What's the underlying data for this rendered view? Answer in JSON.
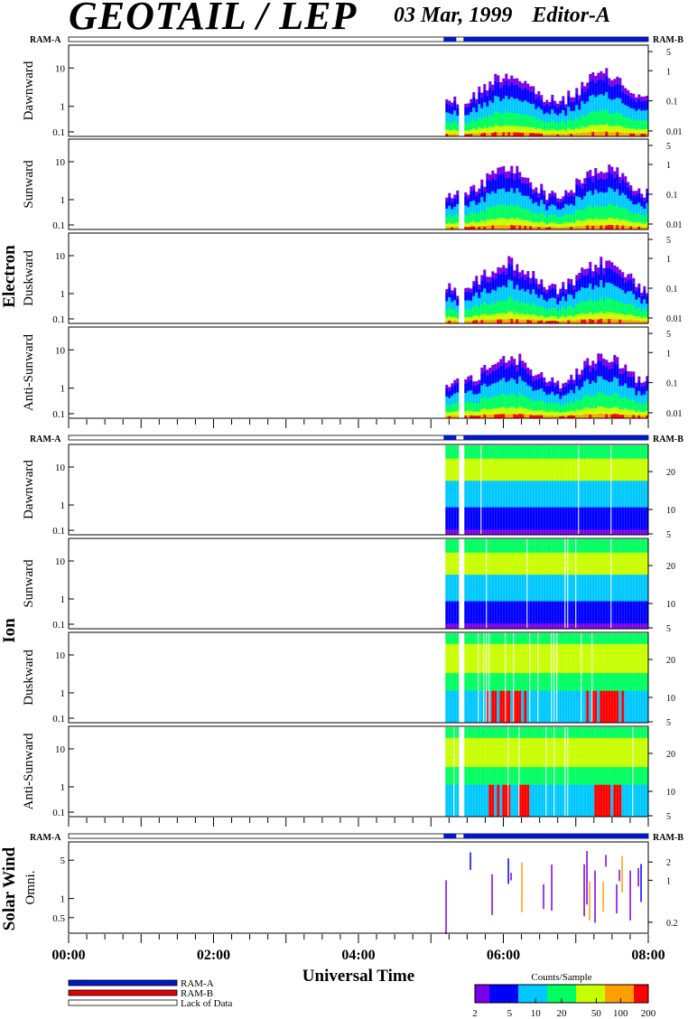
{
  "header": {
    "title": "GEOTAIL / LEP",
    "date": "03 Mar, 1999",
    "editor": "Editor-A"
  },
  "sections": [
    {
      "label": "Electron",
      "panels": [
        "Dawnward",
        "Sunward",
        "Duskward",
        "Anti-Sunward"
      ]
    },
    {
      "label": "Ion",
      "panels": [
        "Dawnward",
        "Sunward",
        "Duskward",
        "Anti-Sunward"
      ]
    },
    {
      "label": "Solar Wind",
      "panels": [
        "Omni."
      ]
    }
  ],
  "ram_labels": {
    "left": "RAM-A",
    "right": "RAM-B"
  },
  "axes": {
    "left_ticks_main": [
      "10",
      "1",
      "0.1"
    ],
    "left_ticks_solar": [
      "5",
      "1",
      "0.5"
    ],
    "right_ticks_electron": [
      "5",
      "1",
      "0.1",
      "0.01"
    ],
    "right_ticks_ion": [
      "20",
      "10",
      "5"
    ],
    "right_ticks_solar": [
      "2",
      "1",
      "0.2"
    ],
    "x_ticks": [
      "00:00",
      "02:00",
      "04:00",
      "06:00",
      "08:00"
    ],
    "x_title": "Universal Time"
  },
  "legend": {
    "items": [
      {
        "label": "RAM-A",
        "color": "#0018c8"
      },
      {
        "label": "RAM-B",
        "color": "#e00000"
      },
      {
        "label": "Lack of Data",
        "color": "#ffffff"
      }
    ]
  },
  "colorbar": {
    "title": "Counts/Sample",
    "ticks": [
      "2",
      "5",
      "10",
      "20",
      "50",
      "100",
      "200"
    ]
  },
  "chart_data": {
    "type": "heatmap",
    "title": "GEOTAIL / LEP",
    "xlabel": "Universal Time",
    "x_range_hours": [
      0,
      8
    ],
    "data_start_hour": 5.2,
    "data_gap_hours": [
      5.35,
      5.45
    ],
    "color_scale": {
      "label": "Counts/Sample",
      "range": [
        2,
        200
      ],
      "scale": "log"
    },
    "colors": [
      "#7a00e8",
      "#0000ff",
      "#00c8ff",
      "#00ff60",
      "#c8ff00",
      "#ffa000",
      "#ff0000"
    ],
    "panels": [
      {
        "section": "Electron",
        "name": "Dawnward",
        "y_range": [
          0.1,
          30
        ],
        "log": true
      },
      {
        "section": "Electron",
        "name": "Sunward",
        "y_range": [
          0.1,
          30
        ],
        "log": true
      },
      {
        "section": "Electron",
        "name": "Duskward",
        "y_range": [
          0.1,
          30
        ],
        "log": true
      },
      {
        "section": "Electron",
        "name": "Anti-Sunward",
        "y_range": [
          0.1,
          30
        ],
        "log": true
      },
      {
        "section": "Ion",
        "name": "Dawnward",
        "y_range": [
          0.1,
          40
        ],
        "log": true
      },
      {
        "section": "Ion",
        "name": "Sunward",
        "y_range": [
          0.1,
          40
        ],
        "log": true
      },
      {
        "section": "Ion",
        "name": "Duskward",
        "y_range": [
          0.1,
          40
        ],
        "log": true
      },
      {
        "section": "Ion",
        "name": "Anti-Sunward",
        "y_range": [
          0.1,
          40
        ],
        "log": true
      },
      {
        "section": "Solar Wind",
        "name": "Omni.",
        "y_range": [
          0.3,
          8
        ],
        "log": true
      }
    ]
  }
}
